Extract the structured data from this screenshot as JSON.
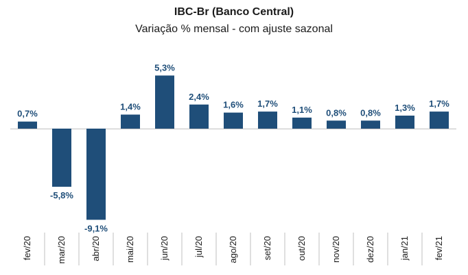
{
  "chart_data": {
    "type": "bar",
    "title": "IBC-Br (Banco Central)",
    "subtitle": "Variação % mensal - com ajuste sazonal",
    "categories": [
      "fev/20",
      "mar/20",
      "abr/20",
      "mai/20",
      "jun/20",
      "jul/20",
      "ago/20",
      "set/20",
      "out/20",
      "nov/20",
      "dez/20",
      "jan/21",
      "fev/21"
    ],
    "values": [
      0.7,
      -5.8,
      -9.1,
      1.4,
      5.3,
      2.4,
      1.6,
      1.7,
      1.1,
      0.8,
      0.8,
      1.3,
      1.7
    ],
    "data_labels": [
      "0,7%",
      "-5,8%",
      "-9,1%",
      "1,4%",
      "5,3%",
      "2,4%",
      "1,6%",
      "1,7%",
      "1,1%",
      "0,8%",
      "0,8%",
      "1,3%",
      "1,7%"
    ],
    "xlabel": "",
    "ylabel": "",
    "grid": false,
    "legend": "none",
    "bar_color": "#1f4e79"
  }
}
